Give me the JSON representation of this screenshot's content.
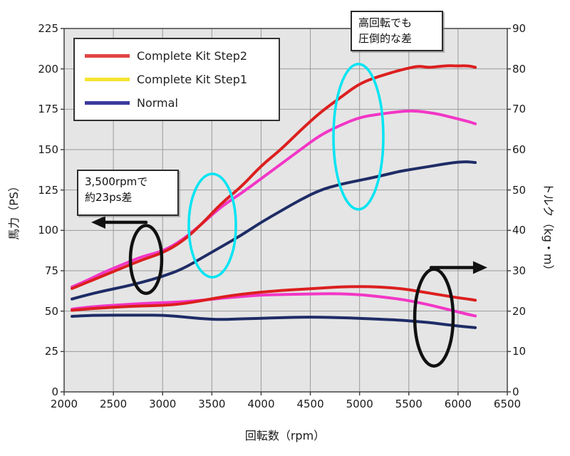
{
  "chart_data": {
    "type": "line",
    "title": "",
    "x_axis": {
      "label": "回転数（rpm）",
      "min": 2000,
      "max": 6500,
      "step": 500,
      "ticks": [
        2000,
        2500,
        3000,
        3500,
        4000,
        4500,
        5000,
        5500,
        6000,
        6500
      ]
    },
    "y_left_axis": {
      "label": "馬力（PS）",
      "min": 0,
      "max": 225,
      "step": 25,
      "ticks": [
        0,
        25,
        50,
        75,
        100,
        125,
        150,
        175,
        200,
        225
      ]
    },
    "y_right_axis": {
      "label": "トルク（kg・m）",
      "min": 0,
      "max": 90,
      "step": 10,
      "ticks": [
        0,
        10,
        20,
        30,
        40,
        50,
        60,
        70,
        80,
        90
      ]
    },
    "grid": true,
    "legend_position": "top-left",
    "rpm": [
      2080,
      2200,
      2400,
      2600,
      2800,
      3000,
      3200,
      3400,
      3600,
      3800,
      4000,
      4200,
      4400,
      4600,
      4800,
      5000,
      5200,
      5400,
      5500,
      5600,
      5700,
      5800,
      5900,
      6000,
      6100,
      6175
    ],
    "series": [
      {
        "name": "Complete Kit Step2",
        "line_color": "#dc1f1f",
        "power_ps": [
          64,
          67,
          72,
          77,
          82,
          86,
          93,
          104,
          117,
          127,
          140,
          150,
          162,
          173,
          182,
          191,
          195.5,
          199,
          200.5,
          201.8,
          200.8,
          201.5,
          202,
          201.8,
          202,
          201
        ],
        "torque_kgm": [
          20.2,
          20.5,
          20.8,
          21.1,
          21.3,
          21.4,
          21.8,
          22.6,
          23.5,
          24.2,
          24.7,
          25.1,
          25.4,
          25.7,
          26.0,
          26.1,
          26.0,
          25.6,
          25.3,
          24.9,
          24.5,
          24.1,
          23.7,
          23.3,
          23.0,
          22.7
        ]
      },
      {
        "name": "Complete Kit Step1",
        "line_color": "#f236c6",
        "power_ps": [
          65,
          68,
          74,
          79,
          84,
          87,
          94,
          104,
          115,
          123,
          132,
          141,
          150,
          159,
          165,
          170,
          172,
          173.5,
          174,
          173.8,
          173,
          172,
          170.5,
          169,
          167.5,
          166
        ],
        "torque_kgm": [
          20.5,
          20.9,
          21.3,
          21.6,
          21.9,
          22.1,
          22.3,
          22.7,
          23.2,
          23.6,
          24.0,
          24.1,
          24.2,
          24.3,
          24.3,
          24.1,
          23.6,
          23.0,
          22.6,
          22.1,
          21.6,
          21.0,
          20.4,
          19.8,
          19.2,
          18.8
        ]
      },
      {
        "name": "Normal",
        "line_color": "#1e2c66",
        "power_ps": [
          57.5,
          59.5,
          62.5,
          65,
          68,
          71.5,
          76,
          83,
          90,
          97,
          105,
          112,
          119,
          125,
          128.5,
          131,
          133.5,
          136.5,
          137.5,
          138.5,
          139.5,
          140.5,
          141.5,
          142.3,
          142.5,
          142
        ],
        "torque_kgm": [
          18.7,
          18.9,
          19.0,
          19.0,
          19.0,
          19.0,
          18.6,
          18.1,
          17.9,
          18.1,
          18.2,
          18.4,
          18.5,
          18.5,
          18.4,
          18.2,
          18.0,
          17.8,
          17.6,
          17.4,
          17.2,
          16.9,
          16.6,
          16.3,
          16.1,
          15.9
        ]
      }
    ],
    "legend": [
      {
        "label": "Complete Kit Step2",
        "swatch_color": "#e04545"
      },
      {
        "label": "Complete Kit Step1",
        "swatch_color": "#f6e430"
      },
      {
        "label": "Normal",
        "swatch_color": "#3b3b9e"
      }
    ],
    "annotations": {
      "callouts": [
        {
          "lines": [
            "3,500rpmで",
            "約23ps差"
          ]
        },
        {
          "lines": [
            "高回転でも",
            "圧倒的な差"
          ]
        }
      ],
      "highlight_ellipses": [
        {
          "color": "#00e4f2",
          "stroke": 3.5,
          "cx_rpm": 3505,
          "cy_ps": 103,
          "rx_rpm": 239,
          "ry_ps": 32
        },
        {
          "color": "#00e4f2",
          "stroke": 3.5,
          "cx_rpm": 4988,
          "cy_ps": 158,
          "rx_rpm": 253,
          "ry_ps": 45
        },
        {
          "color": "#111111",
          "stroke": 4.5,
          "cx_rpm": 2832,
          "cy_ps": 82,
          "rx_rpm": 159,
          "ry_ps": 21
        },
        {
          "color": "#111111",
          "stroke": 4.5,
          "cx_rpm": 5755,
          "cy_ps": 46,
          "rx_rpm": 195,
          "ry_ps": 30
        }
      ],
      "arrows": [
        {
          "from_rpm": 2832,
          "to_rpm": 2275,
          "y_ps": 105,
          "color": "#111111",
          "meaning": "points-to-left-power-axis"
        },
        {
          "from_rpm": 5726,
          "to_rpm": 6297,
          "y_ps": 77,
          "color": "#111111",
          "meaning": "points-to-right-torque-axis"
        }
      ]
    },
    "colors": {
      "plot_background": "#e5e5e5",
      "gridline": "#9a9a9a",
      "frame": "#444444"
    }
  }
}
